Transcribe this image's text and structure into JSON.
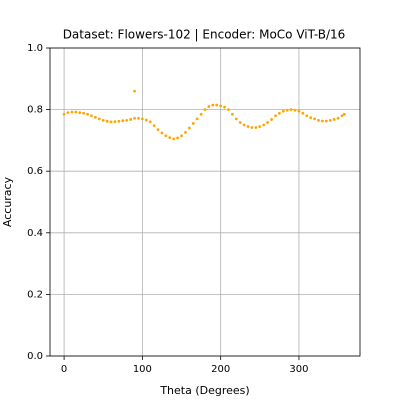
{
  "chart_data": {
    "type": "scatter",
    "title": "Dataset: Flowers-102 | Encoder: MoCo ViT-B/16",
    "x_label": "Theta (Degrees)",
    "y_label": "Accuracy",
    "color": "#ffa500",
    "grid": true,
    "x": [
      0,
      5,
      10,
      15,
      20,
      25,
      30,
      35,
      40,
      45,
      50,
      55,
      60,
      65,
      70,
      75,
      80,
      85,
      90,
      95,
      100,
      105,
      110,
      115,
      120,
      125,
      130,
      135,
      140,
      145,
      150,
      155,
      160,
      165,
      170,
      175,
      180,
      185,
      190,
      195,
      200,
      205,
      210,
      215,
      220,
      225,
      230,
      235,
      240,
      245,
      250,
      255,
      260,
      265,
      270,
      275,
      280,
      285,
      290,
      295,
      300,
      305,
      310,
      315,
      320,
      325,
      330,
      335,
      340,
      345,
      350,
      355,
      358,
      90
    ],
    "values": [
      0.785,
      0.79,
      0.792,
      0.792,
      0.79,
      0.788,
      0.785,
      0.78,
      0.775,
      0.77,
      0.765,
      0.762,
      0.76,
      0.761,
      0.762,
      0.764,
      0.765,
      0.768,
      0.772,
      0.772,
      0.77,
      0.766,
      0.76,
      0.748,
      0.735,
      0.724,
      0.715,
      0.709,
      0.705,
      0.708,
      0.715,
      0.726,
      0.74,
      0.755,
      0.77,
      0.785,
      0.8,
      0.81,
      0.815,
      0.815,
      0.812,
      0.808,
      0.8,
      0.785,
      0.77,
      0.758,
      0.75,
      0.745,
      0.742,
      0.742,
      0.745,
      0.75,
      0.758,
      0.768,
      0.78,
      0.788,
      0.795,
      0.798,
      0.8,
      0.798,
      0.795,
      0.788,
      0.78,
      0.774,
      0.77,
      0.765,
      0.763,
      0.763,
      0.765,
      0.768,
      0.772,
      0.78,
      0.785,
      0.86
    ],
    "xlim": [
      -18,
      378
    ],
    "xticks": [
      0,
      100,
      200,
      300
    ],
    "ylim": [
      0,
      1
    ],
    "yticks": [
      {
        "value": 0,
        "label": "0.0"
      },
      0.2,
      0.4,
      0.6,
      0.8,
      {
        "value": 1,
        "label": "1.0"
      }
    ]
  }
}
